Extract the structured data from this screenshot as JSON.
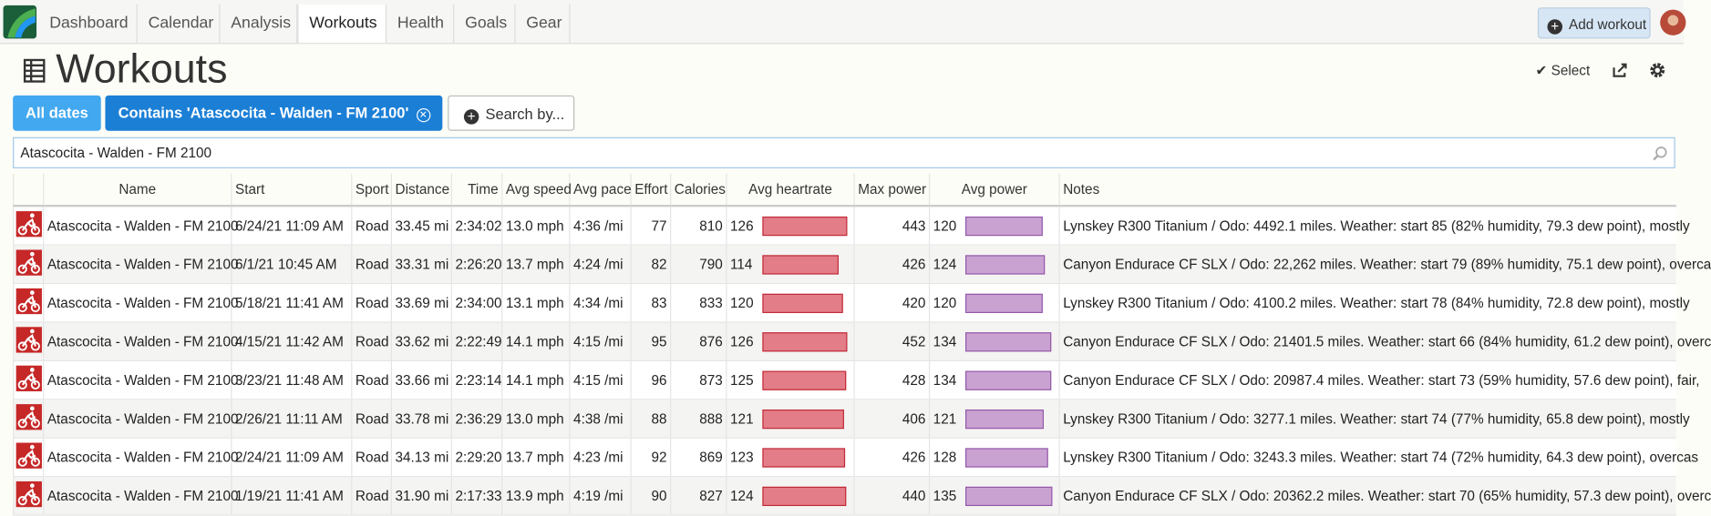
{
  "nav": {
    "tabs": [
      "Dashboard",
      "Calendar",
      "Analysis",
      "Workouts",
      "Health",
      "Goals",
      "Gear"
    ],
    "active_tab": 3,
    "add_workout": "Add workout"
  },
  "page_title": "Workouts",
  "select": "Select",
  "filters": {
    "all_dates": "All dates",
    "contains": "Contains 'Atascocita - Walden - FM 2100'",
    "search_by": "Search by..."
  },
  "search_value": "Atascocita - Walden - FM 2100",
  "table": {
    "columns": [
      "Name",
      "Start",
      "Sport",
      "Distance",
      "Time",
      "Avg speed",
      "Avg pace",
      "Effort",
      "Calories",
      "Avg heartrate",
      "Max power",
      "Avg power",
      "Notes"
    ],
    "rows": [
      [
        "Atascocita - Walden - FM 2100",
        "6/24/21 11:09 AM",
        "Road",
        "33.45 mi",
        "2:34:02",
        "13.0 mph",
        "4:36 /mi",
        77,
        810,
        126,
        443,
        120,
        "Lynskey R300 Titanium / Odo: 4492.1 miles. Weather: start 85 (82% humidity, 79.3 dew point), mostly"
      ],
      [
        "Atascocita - Walden - FM 2100",
        "6/1/21 10:45 AM",
        "Road",
        "33.31 mi",
        "2:26:20",
        "13.7 mph",
        "4:24 /mi",
        82,
        790,
        114,
        426,
        124,
        "Canyon Endurace CF SLX / Odo: 22,262 miles. Weather: start 79 (89% humidity, 75.1 dew point), overca"
      ],
      [
        "Atascocita - Walden - FM 2100",
        "5/18/21 11:41 AM",
        "Road",
        "33.69 mi",
        "2:34:00",
        "13.1 mph",
        "4:34 /mi",
        83,
        833,
        120,
        420,
        120,
        "Lynskey R300 Titanium / Odo: 4100.2 miles. Weather: start 78 (84% humidity, 72.8 dew point), mostly"
      ],
      [
        "Atascocita - Walden - FM 2100",
        "4/15/21 11:42 AM",
        "Road",
        "33.62 mi",
        "2:22:49",
        "14.1 mph",
        "4:15 /mi",
        95,
        876,
        126,
        452,
        134,
        "Canyon Endurace CF SLX / Odo: 21401.5 miles. Weather: start 66 (84% humidity, 61.2 dew point), overc"
      ],
      [
        "Atascocita - Walden - FM 2100",
        "3/23/21 11:48 AM",
        "Road",
        "33.66 mi",
        "2:23:14",
        "14.1 mph",
        "4:15 /mi",
        96,
        873,
        125,
        428,
        134,
        "Canyon Endurace CF SLX / Odo: 20987.4 miles. Weather: start 73 (59% humidity, 57.6 dew point), fair,"
      ],
      [
        "Atascocita - Walden - FM 2100",
        "2/26/21 11:11 AM",
        "Road",
        "33.78 mi",
        "2:36:29",
        "13.0 mph",
        "4:38 /mi",
        88,
        888,
        121,
        406,
        121,
        "Lynskey R300 Titanium / Odo: 3277.1 miles. Weather: start 74 (77% humidity, 65.8 dew point), mostly"
      ],
      [
        "Atascocita - Walden - FM 2100",
        "2/24/21 11:09 AM",
        "Road",
        "34.13 mi",
        "2:29:20",
        "13.7 mph",
        "4:23 /mi",
        92,
        869,
        123,
        426,
        128,
        "Lynskey R300 Titanium / Odo: 3243.3 miles. Weather: start 74 (72% humidity, 64.3 dew point), overcas"
      ],
      [
        "Atascocita - Walden - FM 2100",
        "1/19/21 11:41 AM",
        "Road",
        "31.90 mi",
        "2:17:33",
        "13.9 mph",
        "4:19 /mi",
        90,
        827,
        124,
        440,
        135,
        "Canyon Endurace CF SLX / Odo: 20362.2 miles. Weather: start 70 (65% humidity, 57.3 dew point), overc"
      ]
    ]
  }
}
